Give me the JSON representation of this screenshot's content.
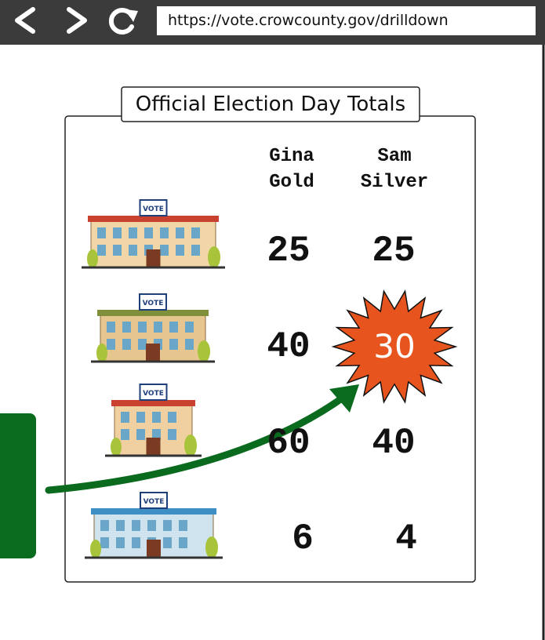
{
  "browser": {
    "url": "https://vote.crowcounty.gov/drilldown"
  },
  "table": {
    "title": "Official Election Day Totals",
    "columns": [
      "Gina Gold",
      "Sam Silver"
    ],
    "rows": [
      {
        "sign": "VOTE",
        "values": [
          25,
          25
        ]
      },
      {
        "sign": "VOTE",
        "values": [
          40,
          30
        ]
      },
      {
        "sign": "VOTE",
        "values": [
          60,
          40
        ]
      },
      {
        "sign": "VOTE",
        "values": [
          6,
          4
        ]
      }
    ]
  }
}
